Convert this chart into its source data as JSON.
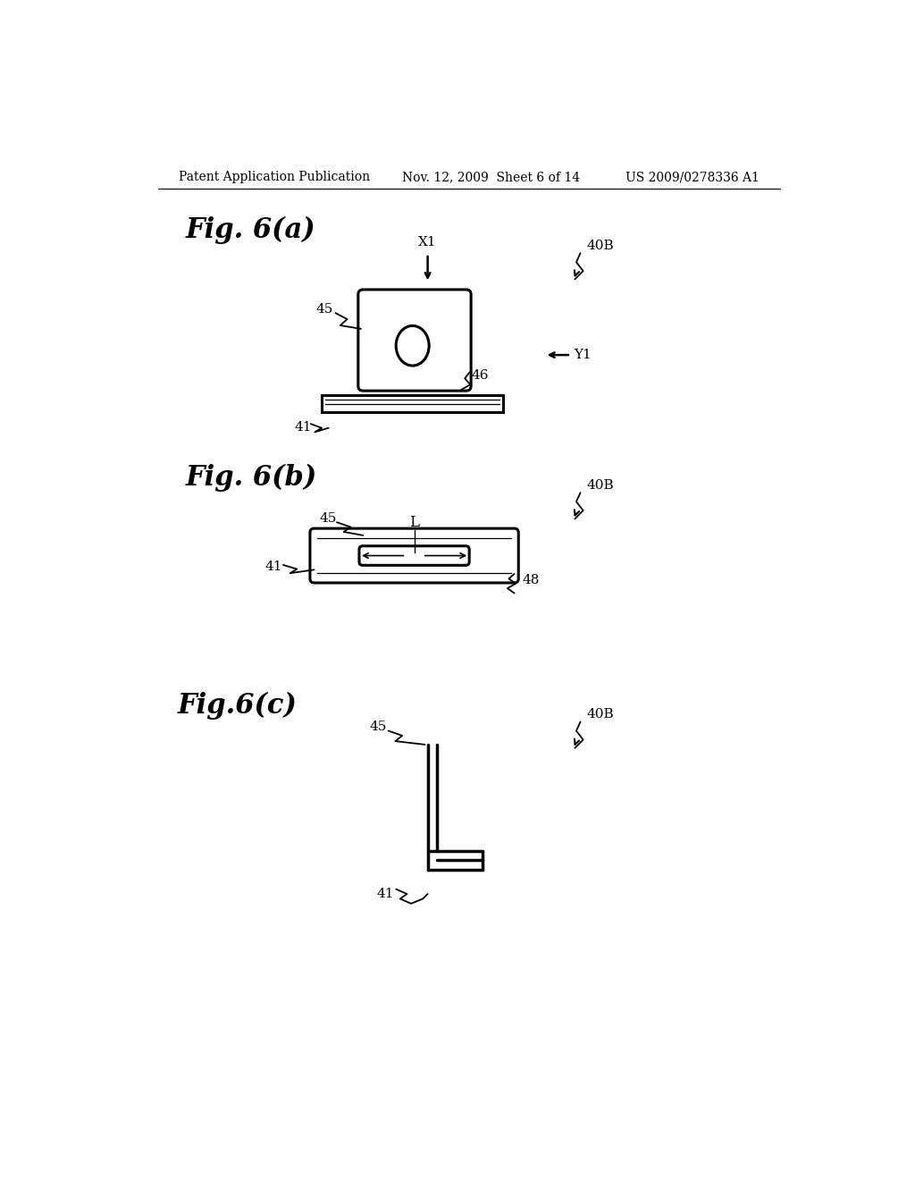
{
  "background_color": "#ffffff",
  "header_left": "Patent Application Publication",
  "header_mid": "Nov. 12, 2009  Sheet 6 of 14",
  "header_right": "US 2009/0278336 A1",
  "fig_a_title": "Fig. 6(a)",
  "fig_b_title": "Fig. 6(b)",
  "fig_c_title": "Fig.6(c)",
  "lw_main": 2.2,
  "lw_label": 1.3,
  "lw_cross": 2.5,
  "header_fontsize": 10,
  "title_fontsize": 22,
  "label_fontsize": 11
}
